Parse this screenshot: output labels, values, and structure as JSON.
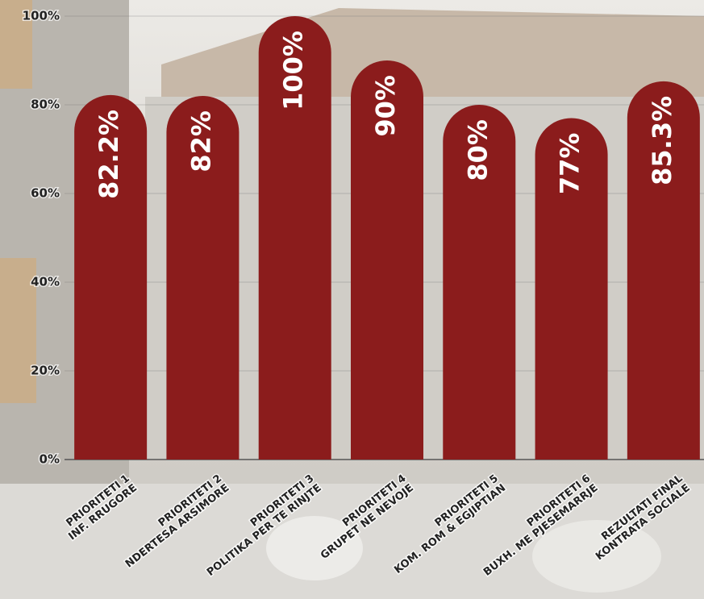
{
  "chart_data": {
    "type": "bar",
    "categories": [
      [
        "PRIORITETI 1",
        "INF. RRUGORE"
      ],
      [
        "PRIORITETI 2",
        "NDERTESA ARSIMORE"
      ],
      [
        "PRIORITETI 3",
        "POLITIKA PER TE RINJTE"
      ],
      [
        "PRIORITETI 4",
        "GRUPET NE NEVOJE"
      ],
      [
        "PRIORITETI 5",
        "KOM. ROM & EGJIPTIAN"
      ],
      [
        "PRIORITETI 6",
        "BUXH. ME PJESEMARRJE"
      ],
      [
        "REZULTATI FINAL",
        "KONTRATA SOCIALE"
      ]
    ],
    "values": [
      82.2,
      82,
      100,
      90,
      80,
      77,
      85.3
    ],
    "value_labels": [
      "82.2%",
      "82%",
      "100%",
      "90%",
      "80%",
      "77%",
      "85.3%"
    ],
    "color": "#8b1c1c",
    "ylim": [
      0,
      100
    ],
    "yticks": [
      {
        "value": 0,
        "label": "0%"
      },
      {
        "value": 20,
        "label": "20%"
      },
      {
        "value": 40,
        "label": "40%"
      },
      {
        "value": 60,
        "label": "60%"
      },
      {
        "value": 80,
        "label": "80%"
      },
      {
        "value": 100,
        "label": "100%"
      }
    ],
    "grid": true
  }
}
